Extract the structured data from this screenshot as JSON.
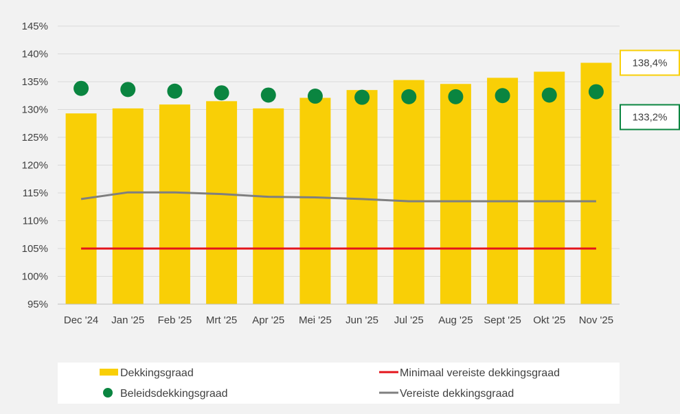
{
  "chart_data": {
    "type": "bar",
    "categories": [
      "Dec '24",
      "Jan '25",
      "Feb '25",
      "Mrt '25",
      "Apr '25",
      "Mei '25",
      "Jun '25",
      "Jul '25",
      "Aug '25",
      "Sept '25",
      "Okt '25",
      "Nov '25"
    ],
    "ylim": [
      95,
      145
    ],
    "yticks": [
      95,
      100,
      105,
      110,
      115,
      120,
      125,
      130,
      135,
      140,
      145
    ],
    "ytick_labels": [
      "95%",
      "100%",
      "105%",
      "110%",
      "115%",
      "120%",
      "125%",
      "130%",
      "135%",
      "140%",
      "145%"
    ],
    "grid": true,
    "legend_position": "bottom",
    "series": [
      {
        "name": "Dekkingsgraad",
        "kind": "bar",
        "color": "#f9cf06",
        "values": [
          129.3,
          130.2,
          130.9,
          131.5,
          130.2,
          132.1,
          133.5,
          135.3,
          134.6,
          135.7,
          136.8,
          138.4
        ]
      },
      {
        "name": "Beleidsdekkingsgraad",
        "kind": "marker",
        "color": "#0a8540",
        "values": [
          133.8,
          133.6,
          133.3,
          133.0,
          132.6,
          132.4,
          132.2,
          132.3,
          132.3,
          132.5,
          132.6,
          133.2
        ]
      },
      {
        "name": "Minimaal vereiste dekkingsgraad",
        "kind": "line",
        "color": "#e4141b",
        "values": [
          105.0,
          105.0,
          105.0,
          105.0,
          105.0,
          105.0,
          105.0,
          105.0,
          105.0,
          105.0,
          105.0,
          105.0
        ]
      },
      {
        "name": "Vereiste dekkingsgraad",
        "kind": "line",
        "color": "#7f7f7f",
        "values": [
          113.9,
          115.1,
          115.1,
          114.8,
          114.3,
          114.2,
          113.9,
          113.5,
          113.5,
          113.5,
          113.5,
          113.5
        ]
      }
    ],
    "callouts": [
      {
        "text": "138,4%",
        "series": "Dekkingsgraad",
        "border_color": "#f9cf06"
      },
      {
        "text": "133,2%",
        "series": "Beleidsdekkingsgraad",
        "border_color": "#0a8540"
      }
    ],
    "legend": [
      {
        "label": "Dekkingsgraad",
        "symbol": "bar",
        "color": "#f9cf06"
      },
      {
        "label": "Minimaal vereiste dekkingsgraad",
        "symbol": "line",
        "color": "#e4141b"
      },
      {
        "label": "Beleidsdekkingsgraad",
        "symbol": "marker",
        "color": "#0a8540"
      },
      {
        "label": "Vereiste dekkingsgraad",
        "symbol": "line",
        "color": "#7f7f7f"
      }
    ]
  }
}
